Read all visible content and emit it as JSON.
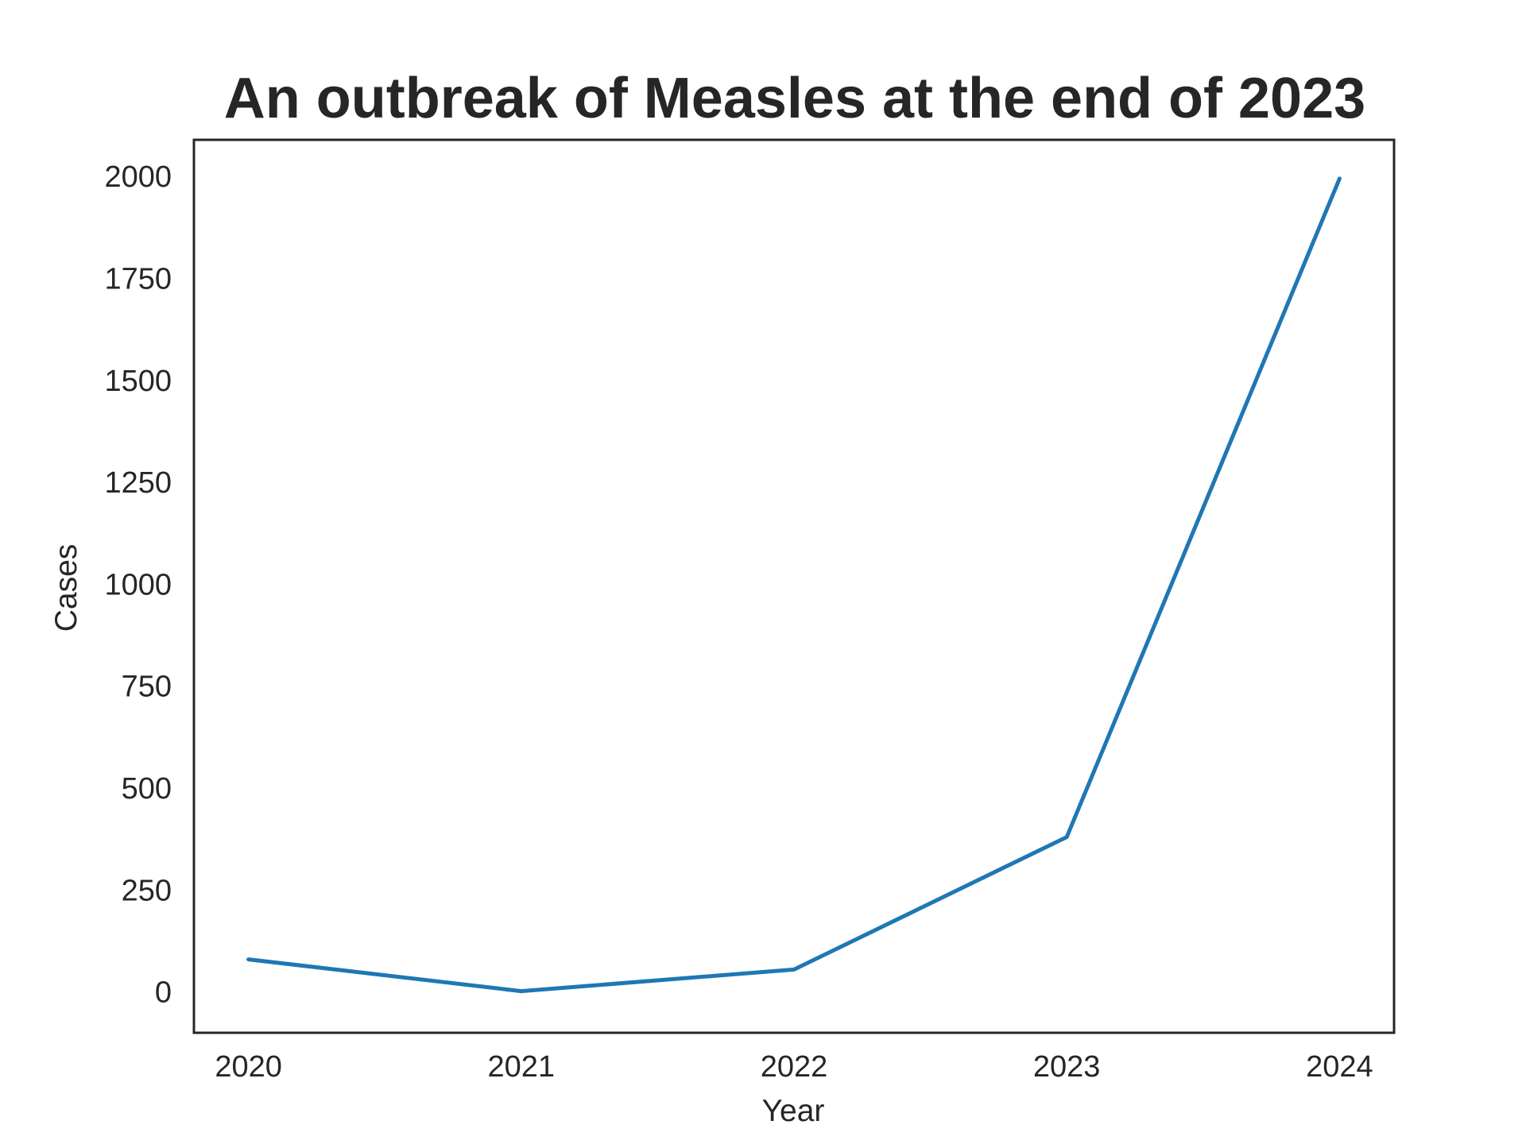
{
  "chart_data": {
    "type": "line",
    "title": "An outbreak of Measles at the end of 2023",
    "xlabel": "Year",
    "ylabel": "Cases",
    "x": [
      2020,
      2021,
      2022,
      2023,
      2024
    ],
    "x_tick_labels": [
      "2020",
      "2021",
      "2022",
      "2023",
      "2024"
    ],
    "y_ticks": [
      0,
      250,
      500,
      750,
      1000,
      1250,
      1500,
      1750,
      2000
    ],
    "y_tick_labels": [
      "0",
      "250",
      "500",
      "750",
      "1000",
      "1250",
      "1500",
      "1750",
      "2000"
    ],
    "xlim": [
      2019.8,
      2024.2
    ],
    "ylim": [
      -100,
      2090
    ],
    "series": [
      {
        "values": [
          80,
          2,
          55,
          380,
          1995
        ],
        "color": "#1f77b4"
      }
    ],
    "grid": false,
    "legend": "none"
  }
}
